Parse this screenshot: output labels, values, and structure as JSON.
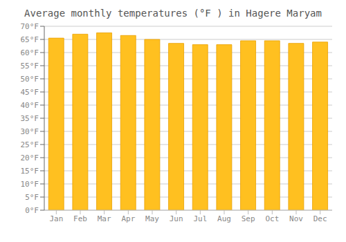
{
  "chart_data": {
    "type": "bar",
    "title": "Average monthly temperatures (°F ) in Hagere Maryam",
    "categories": [
      "Jan",
      "Feb",
      "Mar",
      "Apr",
      "May",
      "Jun",
      "Jul",
      "Aug",
      "Sep",
      "Oct",
      "Nov",
      "Dec"
    ],
    "values": [
      65.5,
      67.0,
      67.5,
      66.5,
      65.0,
      63.5,
      63.0,
      63.0,
      64.5,
      64.5,
      63.5,
      64.0
    ],
    "color": "#FFC020",
    "ylim": [
      0,
      70
    ],
    "yticks": [
      {
        "value": 0,
        "label": "0°F"
      },
      {
        "value": 5,
        "label": "5°F"
      },
      {
        "value": 10,
        "label": "10°F"
      },
      {
        "value": 15,
        "label": "15°F"
      },
      {
        "value": 20,
        "label": "20°F"
      },
      {
        "value": 25,
        "label": "25°F"
      },
      {
        "value": 30,
        "label": "30°F"
      },
      {
        "value": 35,
        "label": "35°F"
      },
      {
        "value": 40,
        "label": "40°F"
      },
      {
        "value": 45,
        "label": "45°F"
      },
      {
        "value": 50,
        "label": "50°F"
      },
      {
        "value": 55,
        "label": "55°F"
      },
      {
        "value": 60,
        "label": "60°F"
      },
      {
        "value": 65,
        "label": "65°F"
      },
      {
        "value": 70,
        "label": "70°F"
      }
    ],
    "grid": true
  }
}
